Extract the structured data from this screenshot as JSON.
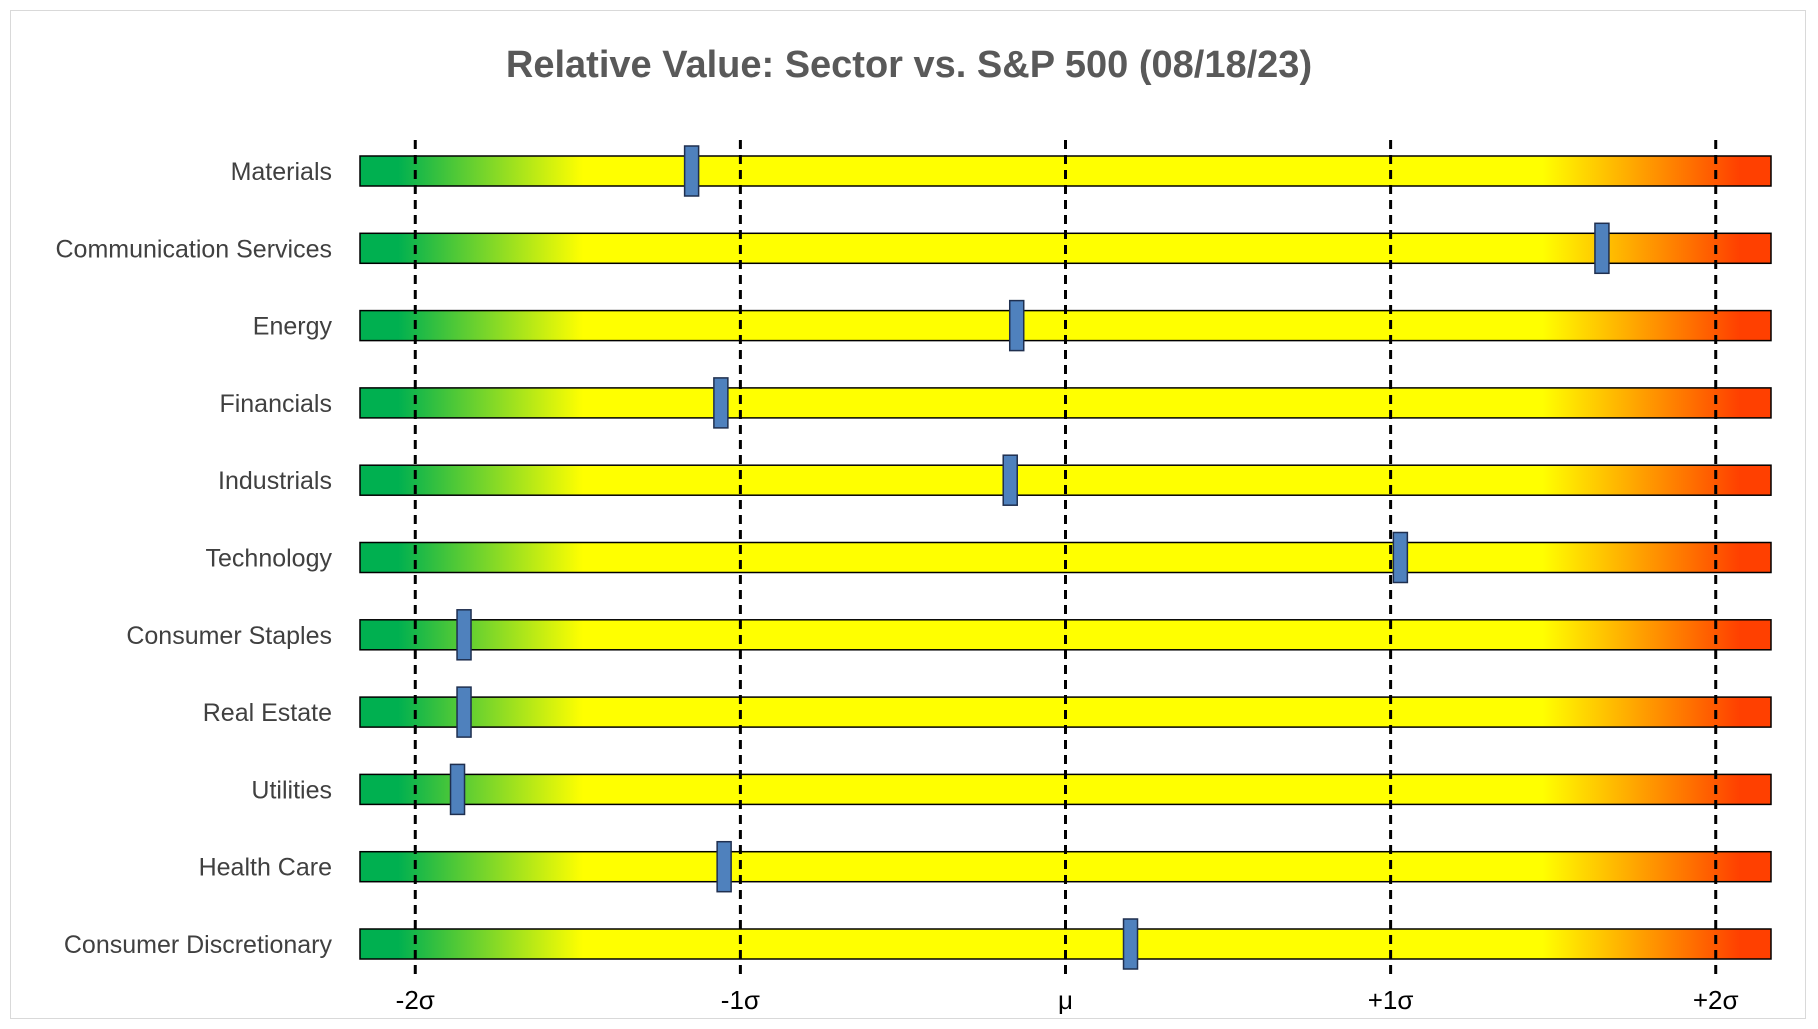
{
  "chart_data": {
    "type": "bar",
    "title": "Relative Value: Sector vs. S&P 500 (08/18/23)",
    "xlabel": "",
    "ylabel": "",
    "xlim": [
      -2.17,
      2.17
    ],
    "categories": [
      "Materials",
      "Communication Services",
      "Energy",
      "Financials",
      "Industrials",
      "Technology",
      "Consumer Staples",
      "Real Estate",
      "Utilities",
      "Health Care",
      "Consumer Discretionary"
    ],
    "values": [
      -1.15,
      1.65,
      -0.15,
      -1.06,
      -0.17,
      1.03,
      -1.85,
      -1.85,
      -1.87,
      -1.05,
      0.2
    ],
    "x_ticks": [
      {
        "value": -2,
        "label": "-2σ"
      },
      {
        "value": -1,
        "label": "-1σ"
      },
      {
        "value": 0,
        "label": "μ"
      },
      {
        "value": 1,
        "label": "+1σ"
      },
      {
        "value": 2,
        "label": "+2σ"
      }
    ],
    "gradient_colors": {
      "cheap": "#00b050",
      "neutral": "#ffff00",
      "expensive": "#ff4000"
    },
    "marker_color": "#4f81bd",
    "grid": false,
    "legend": "none"
  }
}
